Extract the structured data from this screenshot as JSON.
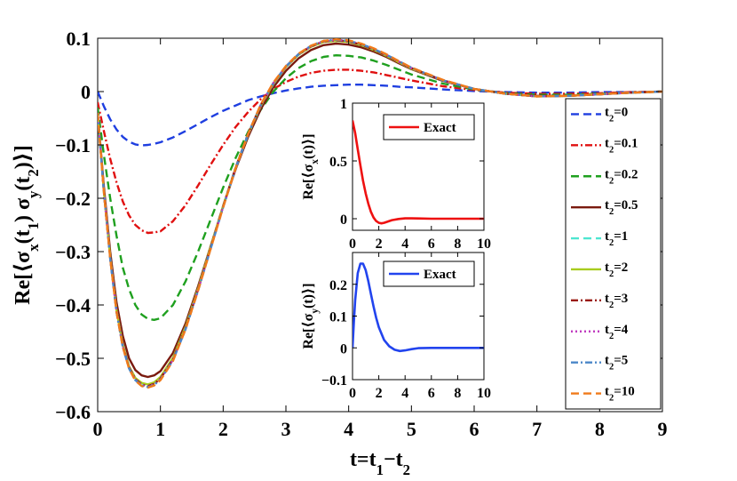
{
  "chart_data": [
    {
      "type": "line",
      "id": "main",
      "ylabel_parts": [
        "Re[⟨σ",
        "x",
        "(t",
        "1",
        ") σ",
        "y",
        "(t",
        "2",
        ")⟩]"
      ],
      "xlabel_parts": [
        "t=t",
        "1",
        "−t",
        "2"
      ],
      "xlim": [
        0,
        9
      ],
      "ylim": [
        -0.6,
        0.1
      ],
      "xticks": [
        0,
        1,
        2,
        3,
        4,
        5,
        6,
        7,
        8,
        9
      ],
      "xtick_labels": [
        "0",
        "1",
        "2",
        "3",
        "4",
        "5",
        "6",
        "7",
        "8",
        "9"
      ],
      "yticks": [
        -0.6,
        -0.5,
        -0.4,
        -0.3,
        -0.2,
        -0.1,
        0,
        0.1
      ],
      "ytick_labels": [
        "−0.6",
        "−0.5",
        "−0.4",
        "−0.3",
        "−0.2",
        "−0.1",
        "0",
        "0.1"
      ],
      "grid": false,
      "legend_position": "right",
      "x": [
        0,
        0.1,
        0.2,
        0.3,
        0.4,
        0.5,
        0.6,
        0.7,
        0.8,
        0.9,
        1.0,
        1.2,
        1.4,
        1.6,
        1.8,
        2.0,
        2.2,
        2.4,
        2.6,
        2.8,
        3.0,
        3.2,
        3.4,
        3.6,
        3.8,
        4.0,
        4.2,
        4.4,
        4.6,
        4.8,
        5.0,
        5.5,
        6.0,
        6.5,
        7.0,
        7.5,
        8.0,
        8.5,
        9.0
      ],
      "series": [
        {
          "name": "t2=0",
          "sub": "2",
          "suffix": "=0",
          "color": "#1f3fe0",
          "dash": "9,5",
          "values": [
            0,
            -0.028,
            -0.052,
            -0.071,
            -0.085,
            -0.094,
            -0.099,
            -0.101,
            -0.1,
            -0.098,
            -0.095,
            -0.086,
            -0.074,
            -0.061,
            -0.048,
            -0.036,
            -0.026,
            -0.016,
            -0.009,
            -0.003,
            0.002,
            0.006,
            0.009,
            0.011,
            0.012,
            0.013,
            0.013,
            0.012,
            0.011,
            0.009,
            0.008,
            0.004,
            0.001,
            -0.001,
            -0.002,
            -0.002,
            -0.001,
            -0.001,
            0
          ]
        },
        {
          "name": "t2=0.1",
          "sub": "2",
          "suffix": "=0.1",
          "color": "#e01010",
          "dash": "8,3,2,3",
          "values": [
            -0.02,
            -0.075,
            -0.126,
            -0.17,
            -0.206,
            -0.232,
            -0.25,
            -0.26,
            -0.265,
            -0.264,
            -0.262,
            -0.243,
            -0.213,
            -0.176,
            -0.137,
            -0.1,
            -0.066,
            -0.038,
            -0.014,
            0.005,
            0.018,
            0.028,
            0.035,
            0.039,
            0.041,
            0.041,
            0.039,
            0.036,
            0.031,
            0.026,
            0.021,
            0.01,
            0.003,
            -0.002,
            -0.004,
            -0.004,
            -0.003,
            -0.001,
            0
          ]
        },
        {
          "name": "t2=0.2",
          "sub": "2",
          "suffix": "=0.2",
          "color": "#1fa01f",
          "dash": "9,5",
          "values": [
            -0.03,
            -0.12,
            -0.2,
            -0.27,
            -0.33,
            -0.37,
            -0.4,
            -0.418,
            -0.426,
            -0.428,
            -0.425,
            -0.4,
            -0.356,
            -0.3,
            -0.24,
            -0.18,
            -0.124,
            -0.075,
            -0.034,
            0.0,
            0.025,
            0.044,
            0.057,
            0.065,
            0.068,
            0.067,
            0.064,
            0.058,
            0.05,
            0.041,
            0.032,
            0.015,
            0.004,
            -0.003,
            -0.006,
            -0.006,
            -0.004,
            -0.002,
            0
          ]
        },
        {
          "name": "t2=0.5",
          "sub": "2",
          "suffix": "=0.5",
          "color": "#7a1a0e",
          "dash": "",
          "values": [
            -0.04,
            -0.18,
            -0.3,
            -0.395,
            -0.458,
            -0.5,
            -0.522,
            -0.532,
            -0.535,
            -0.532,
            -0.524,
            -0.49,
            -0.435,
            -0.365,
            -0.29,
            -0.215,
            -0.145,
            -0.084,
            -0.033,
            0.008,
            0.039,
            0.062,
            0.078,
            0.087,
            0.09,
            0.088,
            0.083,
            0.075,
            0.065,
            0.053,
            0.042,
            0.02,
            0.005,
            -0.004,
            -0.008,
            -0.008,
            -0.005,
            -0.002,
            0
          ]
        },
        {
          "name": "t2=1",
          "sub": "2",
          "suffix": "=1",
          "color": "#4ee6d0",
          "dash": "9,5",
          "values": [
            -0.04,
            -0.19,
            -0.31,
            -0.41,
            -0.475,
            -0.515,
            -0.537,
            -0.547,
            -0.55,
            -0.546,
            -0.536,
            -0.5,
            -0.442,
            -0.37,
            -0.292,
            -0.215,
            -0.143,
            -0.08,
            -0.027,
            0.014,
            0.046,
            0.069,
            0.084,
            0.093,
            0.096,
            0.094,
            0.088,
            0.079,
            0.068,
            0.056,
            0.044,
            0.021,
            0.005,
            -0.004,
            -0.009,
            -0.008,
            -0.005,
            -0.002,
            0
          ]
        },
        {
          "name": "t2=2",
          "sub": "2",
          "suffix": "=2",
          "color": "#a8cc1e",
          "dash": "",
          "values": [
            -0.04,
            -0.19,
            -0.31,
            -0.41,
            -0.475,
            -0.515,
            -0.537,
            -0.546,
            -0.549,
            -0.545,
            -0.535,
            -0.499,
            -0.441,
            -0.369,
            -0.291,
            -0.214,
            -0.142,
            -0.079,
            -0.026,
            0.015,
            0.046,
            0.069,
            0.084,
            0.093,
            0.095,
            0.093,
            0.087,
            0.078,
            0.067,
            0.055,
            0.043,
            0.021,
            0.005,
            -0.004,
            -0.009,
            -0.008,
            -0.005,
            -0.002,
            0
          ]
        },
        {
          "name": "t2=3",
          "sub": "2",
          "suffix": "=3",
          "color": "#9a1a10",
          "dash": "8,3,2,3",
          "values": [
            -0.04,
            -0.19,
            -0.312,
            -0.412,
            -0.477,
            -0.517,
            -0.539,
            -0.549,
            -0.552,
            -0.548,
            -0.538,
            -0.502,
            -0.444,
            -0.371,
            -0.293,
            -0.215,
            -0.142,
            -0.078,
            -0.025,
            0.016,
            0.047,
            0.07,
            0.085,
            0.094,
            0.096,
            0.094,
            0.088,
            0.079,
            0.068,
            0.056,
            0.044,
            0.021,
            0.005,
            -0.004,
            -0.009,
            -0.008,
            -0.005,
            -0.002,
            0
          ]
        },
        {
          "name": "t2=4",
          "sub": "2",
          "suffix": "=4",
          "color": "#c03cc0",
          "dash": "2,3",
          "values": [
            -0.04,
            -0.19,
            -0.312,
            -0.412,
            -0.478,
            -0.518,
            -0.54,
            -0.55,
            -0.553,
            -0.549,
            -0.539,
            -0.503,
            -0.445,
            -0.372,
            -0.294,
            -0.216,
            -0.143,
            -0.079,
            -0.025,
            0.016,
            0.047,
            0.07,
            0.085,
            0.094,
            0.097,
            0.095,
            0.089,
            0.08,
            0.069,
            0.056,
            0.044,
            0.021,
            0.005,
            -0.004,
            -0.009,
            -0.008,
            -0.005,
            -0.002,
            0
          ]
        },
        {
          "name": "t2=5",
          "sub": "2",
          "suffix": "=5",
          "color": "#4a86c8",
          "dash": "8,3,2,3",
          "values": [
            -0.04,
            -0.19,
            -0.313,
            -0.413,
            -0.479,
            -0.519,
            -0.541,
            -0.551,
            -0.554,
            -0.55,
            -0.54,
            -0.504,
            -0.446,
            -0.373,
            -0.295,
            -0.217,
            -0.143,
            -0.079,
            -0.025,
            0.016,
            0.047,
            0.07,
            0.086,
            0.095,
            0.097,
            0.095,
            0.089,
            0.08,
            0.069,
            0.057,
            0.045,
            0.021,
            0.005,
            -0.004,
            -0.009,
            -0.008,
            -0.005,
            -0.002,
            0
          ]
        },
        {
          "name": "t2=10",
          "sub": "2",
          "suffix": "=10",
          "color": "#f07a1a",
          "dash": "9,5",
          "values": [
            -0.04,
            -0.19,
            -0.313,
            -0.413,
            -0.479,
            -0.519,
            -0.542,
            -0.552,
            -0.555,
            -0.551,
            -0.541,
            -0.505,
            -0.446,
            -0.373,
            -0.295,
            -0.217,
            -0.143,
            -0.079,
            -0.024,
            0.017,
            0.048,
            0.071,
            0.086,
            0.095,
            0.098,
            0.096,
            0.09,
            0.081,
            0.07,
            0.057,
            0.045,
            0.022,
            0.005,
            -0.004,
            -0.009,
            -0.008,
            -0.005,
            -0.002,
            0
          ]
        }
      ]
    },
    {
      "type": "line",
      "id": "inset_sx",
      "ylabel_parts": [
        "Re[⟨σ",
        "x",
        "(t)⟩]"
      ],
      "xlim": [
        0,
        10
      ],
      "ylim": [
        -0.1,
        1.0
      ],
      "xticks": [
        0,
        2,
        4,
        6,
        8,
        10
      ],
      "xtick_labels": [
        "0",
        "2",
        "4",
        "6",
        "8",
        "10"
      ],
      "yticks": [
        0,
        0.5,
        1
      ],
      "ytick_labels": [
        "0",
        "0.5",
        "1"
      ],
      "legend_position": "top-right",
      "x": [
        0,
        0.2,
        0.4,
        0.6,
        0.8,
        1.0,
        1.2,
        1.4,
        1.6,
        1.8,
        2.0,
        2.2,
        2.4,
        2.6,
        2.8,
        3.0,
        3.5,
        4.0,
        4.5,
        5.0,
        6.0,
        7.0,
        8.0,
        9.0,
        10.0
      ],
      "series": [
        {
          "name": "Exact",
          "color": "#ee1111",
          "dash": "",
          "values": [
            0.85,
            0.74,
            0.6,
            0.46,
            0.33,
            0.22,
            0.13,
            0.06,
            0.01,
            -0.02,
            -0.035,
            -0.04,
            -0.035,
            -0.028,
            -0.02,
            -0.012,
            -0.002,
            0.003,
            0.003,
            0.002,
            0.0,
            0.0,
            0.0,
            0.0,
            0.0
          ]
        }
      ]
    },
    {
      "type": "line",
      "id": "inset_sy",
      "ylabel_parts": [
        "Re[⟨σ",
        "y",
        "(t)⟩]"
      ],
      "xlim": [
        0,
        10
      ],
      "ylim": [
        -0.1,
        0.3
      ],
      "xticks": [
        0,
        2,
        4,
        6,
        8,
        10
      ],
      "xtick_labels": [
        "0",
        "2",
        "4",
        "6",
        "8",
        "10"
      ],
      "yticks": [
        -0.1,
        0,
        0.1,
        0.2
      ],
      "ytick_labels": [
        "−0.1",
        "0",
        "0.1",
        "0.2"
      ],
      "legend_position": "top-right",
      "x": [
        0,
        0.1,
        0.2,
        0.4,
        0.6,
        0.8,
        1.0,
        1.2,
        1.4,
        1.6,
        1.8,
        2.0,
        2.4,
        2.8,
        3.2,
        3.6,
        4.0,
        4.5,
        5.0,
        6.0,
        7.0,
        8.0,
        9.0,
        10.0
      ],
      "series": [
        {
          "name": "Exact",
          "color": "#2244ee",
          "dash": "",
          "values": [
            0,
            0.08,
            0.15,
            0.235,
            0.265,
            0.265,
            0.245,
            0.21,
            0.17,
            0.13,
            0.095,
            0.065,
            0.025,
            0.005,
            -0.006,
            -0.01,
            -0.008,
            -0.004,
            -0.001,
            0.0,
            0.0,
            0.0,
            0.0,
            0.0
          ]
        }
      ]
    }
  ]
}
